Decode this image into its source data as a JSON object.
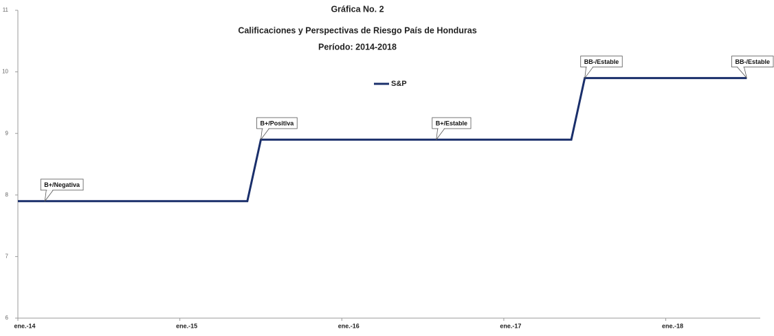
{
  "chart_data": {
    "type": "line",
    "title": [
      "Gráfica No. 2",
      "Calificaciones y Perspectivas de Riesgo País de Honduras",
      "Período: 2014-2018"
    ],
    "categories": [
      "ene.-14",
      null,
      null,
      null,
      null,
      null,
      null,
      null,
      null,
      null,
      null,
      null,
      "ene.-15",
      null,
      null,
      null,
      null,
      null,
      null,
      null,
      null,
      null,
      null,
      null,
      "ene.-16",
      null,
      null,
      null,
      null,
      null,
      null,
      null,
      null,
      null,
      null,
      null,
      "ene.-17",
      null,
      null,
      null,
      null,
      null,
      null,
      null,
      null,
      null,
      null,
      null,
      "ene.-18",
      null,
      null,
      null,
      null,
      null,
      null
    ],
    "series": [
      {
        "name": "S&P",
        "color": "#1a2f6b",
        "values": [
          7.9,
          7.9,
          7.9,
          7.9,
          7.9,
          7.9,
          7.9,
          7.9,
          7.9,
          7.9,
          7.9,
          7.9,
          7.9,
          7.9,
          7.9,
          7.9,
          7.9,
          7.9,
          8.9,
          8.9,
          8.9,
          8.9,
          8.9,
          8.9,
          8.9,
          8.9,
          8.9,
          8.9,
          8.9,
          8.9,
          8.9,
          8.9,
          8.9,
          8.9,
          8.9,
          8.9,
          8.9,
          8.9,
          8.9,
          8.9,
          8.9,
          8.9,
          9.9,
          9.9,
          9.9,
          9.9,
          9.9,
          9.9,
          9.9,
          9.9,
          9.9,
          9.9,
          9.9,
          9.9,
          9.9
        ]
      }
    ],
    "annotations": [
      {
        "text": "B+/Negativa",
        "at": 2
      },
      {
        "text": "B+/Positiva",
        "at": 18
      },
      {
        "text": "B+/Estable",
        "at": 31
      },
      {
        "text": "BB-/Estable",
        "at": 42
      },
      {
        "text": "BB-/Estable",
        "at": 54
      }
    ],
    "ylim": [
      6,
      11
    ],
    "yticks": [
      6,
      7,
      8,
      9,
      10,
      11
    ]
  }
}
